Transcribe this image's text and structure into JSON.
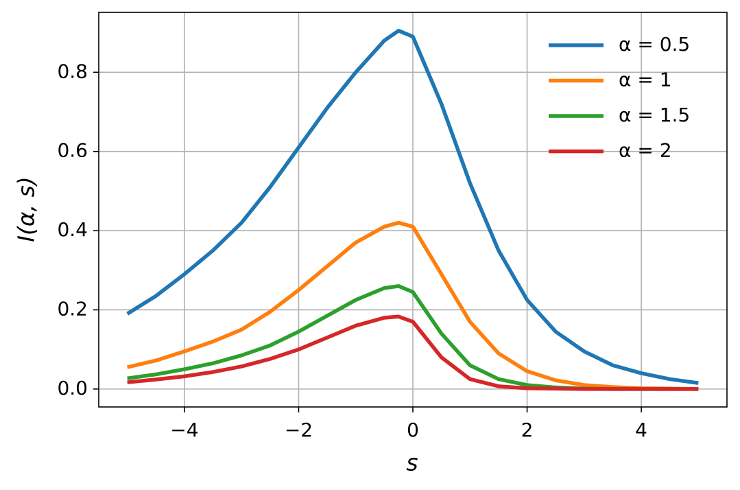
{
  "chart_data": {
    "type": "line",
    "x_label": "s",
    "y_label": "I(α, s)",
    "x": [
      -5,
      -4.5,
      -4,
      -3.5,
      -3,
      -2.5,
      -2,
      -1.5,
      -1,
      -0.5,
      -0.25,
      0,
      0.5,
      1,
      1.5,
      2,
      2.5,
      3,
      3.5,
      4,
      4.5,
      5
    ],
    "series": [
      {
        "name": "α = 0.5",
        "color": "#1f77b4",
        "values": [
          0.19,
          0.235,
          0.29,
          0.35,
          0.42,
          0.51,
          0.61,
          0.71,
          0.8,
          0.88,
          0.905,
          0.89,
          0.72,
          0.52,
          0.35,
          0.225,
          0.145,
          0.095,
          0.06,
          0.04,
          0.025,
          0.015
        ]
      },
      {
        "name": "α = 1",
        "color": "#ff7f0e",
        "values": [
          0.055,
          0.072,
          0.095,
          0.12,
          0.15,
          0.195,
          0.25,
          0.31,
          0.37,
          0.41,
          0.42,
          0.41,
          0.29,
          0.17,
          0.09,
          0.045,
          0.022,
          0.01,
          0.005,
          0.002,
          0.001,
          0
        ]
      },
      {
        "name": "α = 1.5",
        "color": "#2ca02c",
        "values": [
          0.027,
          0.037,
          0.05,
          0.065,
          0.085,
          0.11,
          0.145,
          0.185,
          0.225,
          0.255,
          0.26,
          0.245,
          0.14,
          0.06,
          0.025,
          0.01,
          0.004,
          0.001,
          0,
          0,
          0,
          0
        ]
      },
      {
        "name": "α = 2",
        "color": "#d62728",
        "values": [
          0.017,
          0.024,
          0.032,
          0.043,
          0.057,
          0.076,
          0.1,
          0.13,
          0.16,
          0.18,
          0.183,
          0.17,
          0.08,
          0.025,
          0.007,
          0.002,
          0.001,
          0,
          0,
          0,
          0,
          0
        ]
      }
    ],
    "xlim": [
      -5.5,
      5.5
    ],
    "ylim": [
      -0.0453,
      0.9513
    ],
    "xticks": [
      {
        "value": -4,
        "label": "−4"
      },
      {
        "value": -2,
        "label": "−2"
      },
      0,
      2,
      4
    ],
    "yticks": [
      {
        "value": 0,
        "label": "0.0"
      },
      0.2,
      0.4,
      0.6,
      0.8
    ],
    "grid": true,
    "legend": "upper right"
  }
}
